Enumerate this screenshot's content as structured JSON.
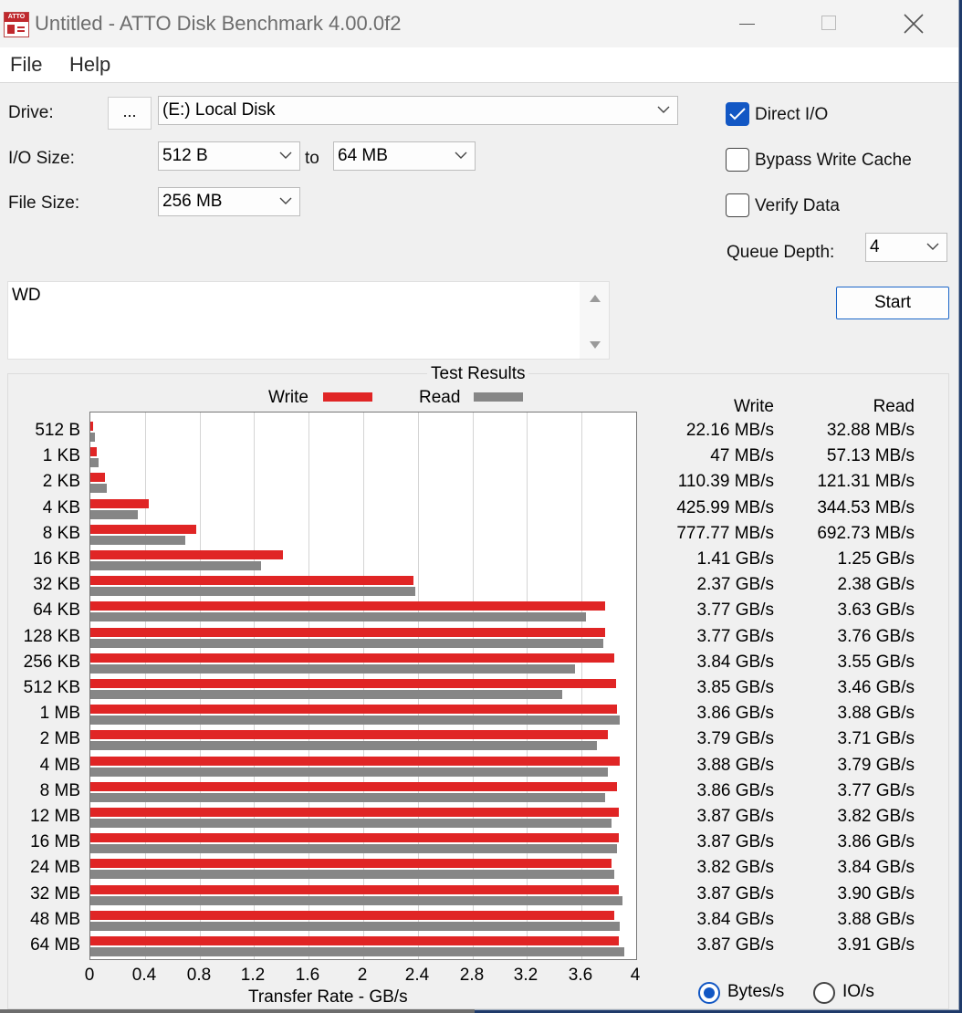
{
  "window": {
    "title": "Untitled - ATTO Disk Benchmark 4.00.0f2",
    "icon_text": "ATTO"
  },
  "menu": [
    "File",
    "Help"
  ],
  "settings": {
    "drive_label": "Drive:",
    "browse_label": "...",
    "drive_value": "(E:) Local Disk",
    "io_size_label": "I/O Size:",
    "io_from": "512 B",
    "to_label": "to",
    "io_to": "64 MB",
    "file_size_label": "File Size:",
    "file_size": "256 MB",
    "direct_io": {
      "label": "Direct I/O",
      "checked": true
    },
    "bypass_write_cache": {
      "label": "Bypass Write Cache",
      "checked": false
    },
    "verify_data": {
      "label": "Verify Data",
      "checked": false
    },
    "queue_depth_label": "Queue Depth:",
    "queue_depth": "4",
    "start_label": "Start"
  },
  "description": "WD",
  "results": {
    "title": "Test Results",
    "write_legend": "Write",
    "read_legend": "Read",
    "write_header": "Write",
    "read_header": "Read",
    "write_values": [
      "22.16 MB/s",
      "47 MB/s",
      "110.39 MB/s",
      "425.99 MB/s",
      "777.77 MB/s",
      "1.41 GB/s",
      "2.37 GB/s",
      "3.77 GB/s",
      "3.77 GB/s",
      "3.84 GB/s",
      "3.85 GB/s",
      "3.86 GB/s",
      "3.79 GB/s",
      "3.88 GB/s",
      "3.86 GB/s",
      "3.87 GB/s",
      "3.87 GB/s",
      "3.82 GB/s",
      "3.87 GB/s",
      "3.84 GB/s",
      "3.87 GB/s"
    ],
    "read_values": [
      "32.88 MB/s",
      "57.13 MB/s",
      "121.31 MB/s",
      "344.53 MB/s",
      "692.73 MB/s",
      "1.25 GB/s",
      "2.38 GB/s",
      "3.63 GB/s",
      "3.76 GB/s",
      "3.55 GB/s",
      "3.46 GB/s",
      "3.88 GB/s",
      "3.71 GB/s",
      "3.79 GB/s",
      "3.77 GB/s",
      "3.82 GB/s",
      "3.86 GB/s",
      "3.84 GB/s",
      "3.90 GB/s",
      "3.88 GB/s",
      "3.91 GB/s"
    ]
  },
  "units": {
    "bytes_label": "Bytes/s",
    "io_label": "IO/s",
    "selected": "Bytes/s"
  },
  "colors": {
    "write": "#e02525",
    "read": "#868686",
    "accent": "#1257c4"
  },
  "chart_data": {
    "type": "bar",
    "orientation": "horizontal",
    "categories": [
      "512 B",
      "1 KB",
      "2 KB",
      "4 KB",
      "8 KB",
      "16 KB",
      "32 KB",
      "64 KB",
      "128 KB",
      "256 KB",
      "512 KB",
      "1 MB",
      "2 MB",
      "4 MB",
      "8 MB",
      "12 MB",
      "16 MB",
      "24 MB",
      "32 MB",
      "48 MB",
      "64 MB"
    ],
    "series": [
      {
        "name": "Write",
        "values": [
          0.022,
          0.047,
          0.11,
          0.426,
          0.778,
          1.41,
          2.37,
          3.77,
          3.77,
          3.84,
          3.85,
          3.86,
          3.79,
          3.88,
          3.86,
          3.87,
          3.87,
          3.82,
          3.87,
          3.84,
          3.87
        ]
      },
      {
        "name": "Read",
        "values": [
          0.033,
          0.057,
          0.121,
          0.345,
          0.693,
          1.25,
          2.38,
          3.63,
          3.76,
          3.55,
          3.46,
          3.88,
          3.71,
          3.79,
          3.77,
          3.82,
          3.86,
          3.84,
          3.9,
          3.88,
          3.91
        ]
      }
    ],
    "xlabel": "Transfer Rate - GB/s",
    "xticks": [
      "0",
      "0.4",
      "0.8",
      "1.2",
      "1.6",
      "2",
      "2.4",
      "2.8",
      "3.2",
      "3.6",
      "4"
    ],
    "xlim": [
      0,
      4
    ],
    "legend": "top"
  }
}
